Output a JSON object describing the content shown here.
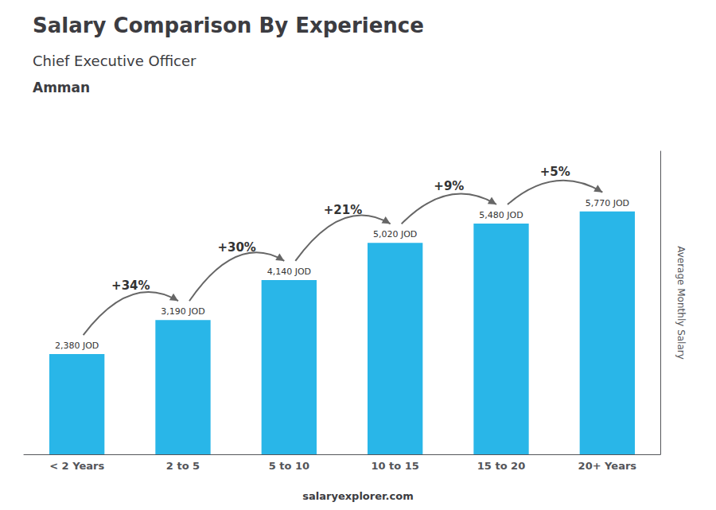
{
  "chart_data": {
    "type": "bar",
    "title": "Salary Comparison By Experience",
    "subtitle": "Chief Executive Officer",
    "city": "Amman",
    "footer": [
      "salary",
      "explorer.com"
    ],
    "ylabel": "Average Monthly Salary",
    "categories": [
      "< 2 Years",
      "2 to 5",
      "5 to 10",
      "10 to 15",
      "15 to 20",
      "20+ Years"
    ],
    "values": [
      2380,
      3190,
      4140,
      5020,
      5480,
      5770
    ],
    "value_labels": [
      "2,380 JOD",
      "3,190 JOD",
      "4,140 JOD",
      "5,020 JOD",
      "5,480 JOD",
      "5,770 JOD"
    ],
    "data_labels": true,
    "annotations": [
      "+34%",
      "+30%",
      "+21%",
      "+9%",
      "+5%"
    ],
    "color": "#29b6e8",
    "ylim": [
      0,
      7200
    ],
    "yticks": [],
    "tick_labels": "x",
    "grid": false
  }
}
